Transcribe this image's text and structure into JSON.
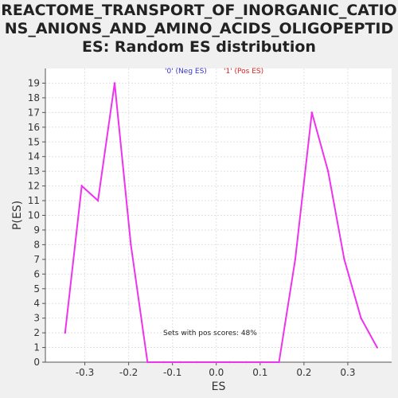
{
  "chart_data": {
    "type": "line",
    "title": "REACTOME_TRANSPORT_OF_INORGANIC_CATIONS_ANIONS_AND_AMINO_ACIDS_OLIGOPEPTIDES: Random ES distribution",
    "xlabel": "ES",
    "ylabel": "P(ES)",
    "xlim": [
      -0.39,
      0.4
    ],
    "ylim": [
      0,
      20
    ],
    "x_ticks": [
      -0.3,
      -0.2,
      -0.1,
      0.0,
      0.1,
      0.2,
      0.3
    ],
    "x_tick_labels": [
      "-0.3",
      "-0.2",
      "-0.1",
      "0.0",
      "0.1",
      "0.2",
      "0.3"
    ],
    "y_ticks": [
      0,
      1,
      2,
      3,
      4,
      5,
      6,
      7,
      8,
      9,
      10,
      11,
      12,
      13,
      14,
      15,
      16,
      17,
      18,
      19
    ],
    "grid": true,
    "legend": [
      {
        "label": "'0' (Neg ES)",
        "color": "#3333cc"
      },
      {
        "label": "'1' (Pos ES)",
        "color": "#dd2222"
      }
    ],
    "legend_placement": "top-center",
    "annotation": "Sets with pos scores: 48%",
    "line_color": "#ee33ee",
    "series": [
      {
        "x": [
          -0.345,
          -0.307,
          -0.27,
          -0.232,
          -0.195,
          -0.157,
          -0.12,
          -0.082,
          -0.045,
          -0.007,
          0.03,
          0.068,
          0.105,
          0.143,
          0.18,
          0.218,
          0.255,
          0.292,
          0.33,
          0.367
        ],
        "y": [
          2,
          12,
          11,
          19,
          8,
          0,
          0,
          0,
          0,
          0,
          0,
          0,
          0,
          0,
          7,
          17,
          13,
          7,
          3,
          1
        ]
      }
    ]
  }
}
